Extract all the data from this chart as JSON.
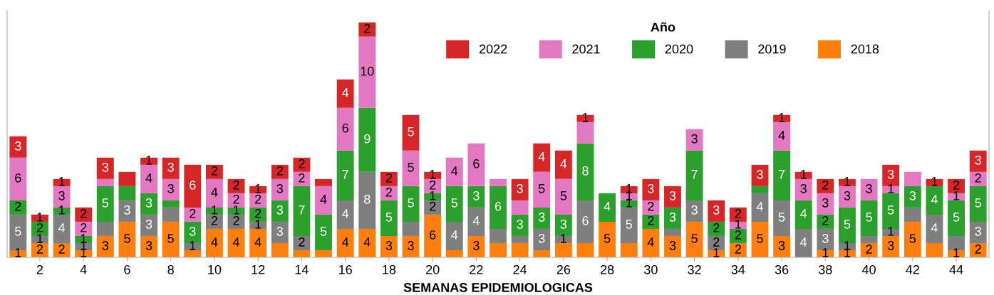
{
  "chart_data": {
    "type": "bar",
    "stacked": true,
    "xlabel": "SEMANAS EPIDEMIOLOGICAS",
    "legend_title": "Año",
    "legend": "top right",
    "grid": false,
    "tick_labels": "x",
    "categories": [
      null,
      "2",
      null,
      "4",
      null,
      "6",
      null,
      "8",
      null,
      "10",
      null,
      "12",
      null,
      "14",
      null,
      "16",
      null,
      "18",
      null,
      "20",
      null,
      "22",
      null,
      "24",
      null,
      "26",
      null,
      "28",
      null,
      "30",
      null,
      "32",
      null,
      "34",
      null,
      "36",
      null,
      "38",
      null,
      "40",
      null,
      "42",
      null,
      "44",
      null
    ],
    "series": [
      {
        "name": "2018",
        "color": "#ff7f0e",
        "values": [
          1,
          2,
          2,
          1,
          3,
          5,
          3,
          5,
          1,
          4,
          4,
          4,
          2,
          1,
          1,
          4,
          4,
          3,
          3,
          6,
          1,
          3,
          2,
          2,
          1,
          2,
          2,
          5,
          2,
          4,
          3,
          5,
          1,
          2,
          5,
          3,
          0,
          1,
          1,
          2,
          3,
          5,
          2,
          1,
          2
        ],
        "value_labels": [
          "1",
          "2",
          "2",
          "1",
          "3",
          "5",
          "3",
          "5",
          null,
          "4",
          "4",
          "4",
          null,
          null,
          null,
          "4",
          "4",
          "3",
          "3",
          "6",
          null,
          "3",
          null,
          null,
          null,
          null,
          null,
          "5",
          null,
          "4",
          "3",
          "5",
          "1",
          "2",
          "5",
          "3",
          null,
          "1",
          "1",
          "2",
          "3",
          "5",
          null,
          "1",
          "2"
        ]
      },
      {
        "name": "2019",
        "color": "#7f7f7f",
        "values": [
          5,
          1,
          4,
          1,
          2,
          3,
          3,
          2,
          1,
          2,
          2,
          1,
          3,
          2,
          0,
          4,
          8,
          0,
          2,
          2,
          4,
          4,
          2,
          1,
          3,
          1,
          6,
          0,
          5,
          0,
          1,
          3,
          2,
          0,
          4,
          5,
          4,
          3,
          1,
          1,
          1,
          2,
          4,
          2,
          3
        ],
        "value_labels": [
          "5",
          "1",
          "4",
          "1",
          null,
          "3",
          "3",
          null,
          "1",
          "2",
          "2",
          "1",
          "3",
          "2",
          null,
          "4",
          "8",
          null,
          null,
          "2",
          "4",
          "4",
          null,
          null,
          "3",
          "1",
          "6",
          null,
          "5",
          null,
          null,
          "3",
          "2",
          null,
          "4",
          "5",
          "4",
          "3",
          "1",
          null,
          "1",
          null,
          "4",
          null,
          "3"
        ]
      },
      {
        "name": "2020",
        "color": "#2ca02c",
        "values": [
          2,
          2,
          1,
          1,
          5,
          2,
          3,
          1,
          3,
          1,
          1,
          2,
          3,
          7,
          5,
          7,
          9,
          5,
          5,
          1,
          5,
          3,
          6,
          3,
          3,
          3,
          8,
          4,
          1,
          2,
          3,
          7,
          2,
          2,
          1,
          7,
          4,
          2,
          5,
          5,
          5,
          3,
          4,
          5,
          5
        ],
        "value_labels": [
          "2",
          "2",
          "1",
          "1",
          "5",
          null,
          "3",
          null,
          "3",
          "1",
          "1",
          "2",
          "3",
          "7",
          "5",
          "7",
          "9",
          "5",
          "5",
          "1",
          "5",
          "3",
          "6",
          "3",
          "3",
          "3",
          "8",
          "4",
          "1",
          "2",
          "3",
          "7",
          "2",
          "2",
          null,
          "7",
          "4",
          "2",
          "5",
          "5",
          "5",
          "3",
          "4",
          "5",
          "5"
        ]
      },
      {
        "name": "2021",
        "color": "#e377c2",
        "values": [
          6,
          0,
          3,
          2,
          1,
          0,
          4,
          3,
          2,
          4,
          2,
          2,
          3,
          2,
          4,
          6,
          10,
          2,
          5,
          2,
          4,
          6,
          1,
          2,
          5,
          5,
          3,
          0,
          1,
          2,
          0,
          3,
          0,
          1,
          0,
          4,
          3,
          3,
          3,
          3,
          1,
          2,
          0,
          1,
          2
        ],
        "value_labels": [
          "6",
          null,
          "3",
          "2",
          null,
          null,
          "4",
          "3",
          "2",
          "4",
          "2",
          "2",
          "3",
          "2",
          "4",
          "6",
          "10",
          "2",
          "5",
          "2",
          "4",
          "6",
          null,
          null,
          "5",
          "5",
          null,
          null,
          "1",
          "2",
          null,
          "3",
          null,
          "1",
          null,
          "4",
          "3",
          "3",
          "3",
          "3",
          "1",
          null,
          null,
          "1",
          "2"
        ]
      },
      {
        "name": "2022",
        "color": "#d62728",
        "values": [
          3,
          1,
          1,
          2,
          3,
          2,
          1,
          3,
          6,
          2,
          2,
          1,
          2,
          2,
          1,
          4,
          2,
          2,
          5,
          1,
          0,
          0,
          0,
          3,
          4,
          4,
          1,
          0,
          1,
          3,
          3,
          0,
          3,
          2,
          3,
          1,
          1,
          2,
          1,
          0,
          3,
          0,
          1,
          2,
          3
        ],
        "value_labels": [
          "3",
          "1",
          "1",
          "2",
          "3",
          null,
          "1",
          "3",
          "6",
          "2",
          "2",
          "1",
          "2",
          "2",
          null,
          "4",
          "2",
          "2",
          "5",
          "1",
          null,
          null,
          null,
          "3",
          "4",
          "4",
          "1",
          null,
          "1",
          "3",
          "3",
          null,
          "3",
          "2",
          "3",
          "1",
          "1",
          "2",
          "1",
          null,
          "3",
          null,
          "1",
          "2",
          "3"
        ]
      }
    ]
  }
}
